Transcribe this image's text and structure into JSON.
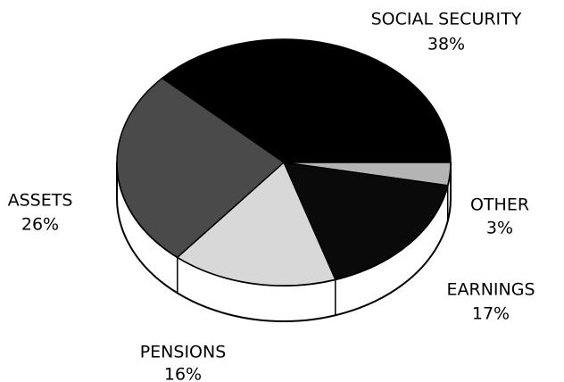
{
  "chart_data": {
    "type": "pie",
    "categories": [
      "SOCIAL SECURITY",
      "OTHER",
      "EARNINGS",
      "PENSIONS",
      "ASSETS"
    ],
    "values": [
      38,
      3,
      17,
      16,
      26
    ],
    "value_labels": [
      "38%",
      "3%",
      "17%",
      "16%",
      "26%"
    ],
    "colors": [
      "#000000",
      "#b4b4b4",
      "#0a0a0a",
      "#d8d8d8",
      "#4a4a4a"
    ]
  }
}
